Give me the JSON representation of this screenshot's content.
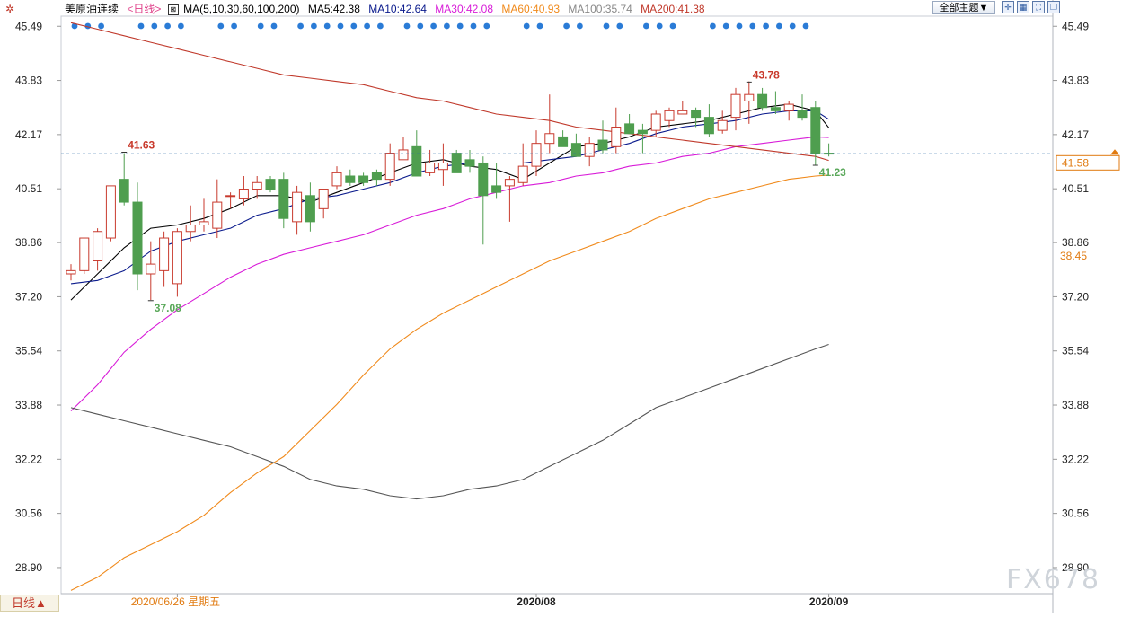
{
  "header": {
    "instrument": "美原油连续",
    "period": "<日线>",
    "ma_label": "MA(5,10,30,60,100,200)",
    "theme_button": "全部主题▼"
  },
  "period_button": "日线▲",
  "watermark": "FX678",
  "chart_data": {
    "type": "candlestick",
    "instrument": "美原油连续",
    "period": "日线",
    "ylim": [
      28.1,
      45.8
    ],
    "y_ticks": [
      "45.49",
      "43.83",
      "42.17",
      "40.51",
      "38.86",
      "37.20",
      "35.54",
      "33.88",
      "32.22",
      "30.56",
      "28.90"
    ],
    "x_labels": [
      {
        "label": "2020/06/26 星期五",
        "index": 8
      },
      {
        "label": "2020/08",
        "index": 35
      },
      {
        "label": "2020/09",
        "index": 57
      }
    ],
    "candles": [
      [
        37.9,
        38.2,
        37.7,
        38.0
      ],
      [
        38.0,
        39.0,
        37.9,
        39.0
      ],
      [
        38.3,
        39.3,
        38.0,
        39.2
      ],
      [
        39.0,
        40.6,
        38.9,
        40.6
      ],
      [
        40.8,
        41.6,
        40.0,
        40.1
      ],
      [
        40.1,
        40.7,
        37.4,
        37.9
      ],
      [
        37.9,
        38.9,
        37.1,
        38.2
      ],
      [
        38.0,
        39.2,
        37.5,
        39.0
      ],
      [
        37.6,
        39.3,
        37.2,
        39.2
      ],
      [
        39.2,
        40.0,
        38.9,
        39.4
      ],
      [
        39.4,
        40.2,
        39.2,
        39.5
      ],
      [
        39.3,
        40.8,
        39.0,
        40.1
      ],
      [
        40.3,
        40.4,
        39.9,
        40.3
      ],
      [
        40.2,
        40.9,
        40.0,
        40.5
      ],
      [
        40.5,
        40.9,
        40.2,
        40.7
      ],
      [
        40.8,
        40.9,
        40.4,
        40.5
      ],
      [
        40.8,
        41.0,
        39.3,
        39.6
      ],
      [
        39.5,
        40.6,
        39.1,
        40.4
      ],
      [
        40.3,
        40.7,
        39.2,
        39.5
      ],
      [
        39.9,
        40.5,
        39.6,
        40.5
      ],
      [
        40.6,
        41.2,
        40.5,
        41.0
      ],
      [
        40.9,
        41.1,
        40.6,
        40.7
      ],
      [
        40.9,
        41.0,
        40.6,
        40.7
      ],
      [
        41.0,
        41.1,
        40.6,
        40.8
      ],
      [
        40.8,
        41.9,
        40.6,
        41.6
      ],
      [
        41.4,
        42.1,
        41.4,
        41.7
      ],
      [
        41.8,
        42.3,
        40.9,
        40.9
      ],
      [
        41.0,
        41.7,
        40.9,
        41.3
      ],
      [
        41.1,
        41.9,
        40.6,
        41.3
      ],
      [
        41.6,
        41.7,
        41.0,
        41.0
      ],
      [
        41.4,
        41.7,
        41.0,
        41.2
      ],
      [
        41.3,
        41.5,
        38.8,
        40.3
      ],
      [
        40.6,
        41.3,
        40.2,
        40.4
      ],
      [
        40.6,
        40.9,
        39.5,
        40.8
      ],
      [
        40.7,
        41.9,
        40.6,
        41.2
      ],
      [
        41.2,
        42.3,
        40.9,
        41.9
      ],
      [
        41.9,
        43.4,
        41.6,
        42.2
      ],
      [
        42.1,
        42.3,
        41.8,
        41.8
      ],
      [
        41.9,
        42.2,
        41.5,
        41.5
      ],
      [
        41.5,
        42.1,
        41.2,
        41.9
      ],
      [
        42.0,
        42.6,
        41.6,
        41.7
      ],
      [
        41.8,
        43.0,
        41.6,
        42.4
      ],
      [
        42.5,
        42.8,
        42.2,
        42.2
      ],
      [
        42.3,
        42.5,
        41.6,
        42.2
      ],
      [
        42.3,
        42.9,
        42.1,
        42.8
      ],
      [
        42.6,
        43.0,
        42.4,
        42.9
      ],
      [
        42.8,
        43.2,
        42.8,
        42.9
      ],
      [
        42.9,
        43.0,
        42.4,
        42.7
      ],
      [
        42.7,
        43.1,
        42.1,
        42.2
      ],
      [
        42.3,
        42.9,
        42.2,
        42.6
      ],
      [
        42.7,
        43.6,
        42.3,
        43.4
      ],
      [
        43.2,
        43.8,
        42.5,
        43.4
      ],
      [
        43.4,
        43.6,
        42.9,
        43.0
      ],
      [
        43.0,
        43.5,
        42.8,
        42.9
      ],
      [
        42.9,
        43.2,
        42.6,
        43.1
      ],
      [
        42.9,
        43.4,
        42.6,
        42.7
      ],
      [
        43.0,
        43.2,
        41.23,
        41.6
      ],
      [
        41.6,
        41.9,
        41.5,
        41.58
      ]
    ],
    "candle_colors": {
      "up": "#c83a2e",
      "down": "#4f9e4f"
    },
    "high_annotations": [
      {
        "label": "41.63",
        "index": 4,
        "value": 41.63,
        "color": "#c8392b"
      },
      {
        "label": "43.78",
        "index": 51,
        "value": 43.78,
        "color": "#c8392b"
      }
    ],
    "low_annotations": [
      {
        "label": "37.08",
        "index": 6,
        "value": 37.08,
        "color": "#5aa85a"
      },
      {
        "label": "41.23",
        "index": 56,
        "value": 41.23,
        "color": "#5aa85a"
      }
    ],
    "ma_series": [
      {
        "name": "MA5",
        "value_label": "MA5:42.38",
        "latest": 42.38,
        "color": "#000000",
        "points": [
          [
            0,
            37.1
          ],
          [
            2,
            37.9
          ],
          [
            4,
            38.7
          ],
          [
            6,
            39.3
          ],
          [
            8,
            39.4
          ],
          [
            10,
            39.6
          ],
          [
            12,
            39.9
          ],
          [
            14,
            40.3
          ],
          [
            16,
            40.3
          ],
          [
            18,
            40.1
          ],
          [
            20,
            40.4
          ],
          [
            22,
            40.7
          ],
          [
            24,
            41.0
          ],
          [
            26,
            41.3
          ],
          [
            28,
            41.4
          ],
          [
            30,
            41.2
          ],
          [
            32,
            41.1
          ],
          [
            34,
            40.8
          ],
          [
            36,
            41.3
          ],
          [
            38,
            41.8
          ],
          [
            40,
            41.9
          ],
          [
            42,
            42.1
          ],
          [
            44,
            42.4
          ],
          [
            46,
            42.5
          ],
          [
            48,
            42.6
          ],
          [
            50,
            42.8
          ],
          [
            52,
            43.0
          ],
          [
            54,
            43.1
          ],
          [
            56,
            42.9
          ],
          [
            57,
            42.38
          ]
        ]
      },
      {
        "name": "MA10",
        "value_label": "MA10:42.64",
        "latest": 42.64,
        "color": "#0a1a8c",
        "points": [
          [
            0,
            37.6
          ],
          [
            2,
            37.7
          ],
          [
            4,
            38.0
          ],
          [
            6,
            38.6
          ],
          [
            8,
            38.9
          ],
          [
            10,
            39.1
          ],
          [
            12,
            39.3
          ],
          [
            14,
            39.7
          ],
          [
            16,
            39.9
          ],
          [
            18,
            40.2
          ],
          [
            20,
            40.3
          ],
          [
            22,
            40.5
          ],
          [
            24,
            40.7
          ],
          [
            26,
            41.0
          ],
          [
            28,
            41.2
          ],
          [
            30,
            41.3
          ],
          [
            32,
            41.3
          ],
          [
            34,
            41.3
          ],
          [
            36,
            41.4
          ],
          [
            38,
            41.5
          ],
          [
            40,
            41.7
          ],
          [
            42,
            41.9
          ],
          [
            44,
            42.2
          ],
          [
            46,
            42.4
          ],
          [
            48,
            42.5
          ],
          [
            50,
            42.6
          ],
          [
            52,
            42.8
          ],
          [
            54,
            42.9
          ],
          [
            56,
            42.9
          ],
          [
            57,
            42.64
          ]
        ]
      },
      {
        "name": "MA30",
        "value_label": "MA30:42.08",
        "latest": 42.08,
        "color": "#d81bd8",
        "points": [
          [
            0,
            33.7
          ],
          [
            2,
            34.5
          ],
          [
            4,
            35.5
          ],
          [
            6,
            36.2
          ],
          [
            8,
            36.8
          ],
          [
            10,
            37.3
          ],
          [
            12,
            37.8
          ],
          [
            14,
            38.2
          ],
          [
            16,
            38.5
          ],
          [
            18,
            38.7
          ],
          [
            20,
            38.9
          ],
          [
            22,
            39.1
          ],
          [
            24,
            39.4
          ],
          [
            26,
            39.7
          ],
          [
            28,
            39.9
          ],
          [
            30,
            40.2
          ],
          [
            32,
            40.4
          ],
          [
            34,
            40.6
          ],
          [
            36,
            40.7
          ],
          [
            38,
            40.9
          ],
          [
            40,
            41.0
          ],
          [
            42,
            41.2
          ],
          [
            44,
            41.3
          ],
          [
            46,
            41.5
          ],
          [
            48,
            41.6
          ],
          [
            50,
            41.8
          ],
          [
            52,
            41.9
          ],
          [
            54,
            42.0
          ],
          [
            56,
            42.1
          ],
          [
            57,
            42.08
          ]
        ]
      },
      {
        "name": "MA60",
        "value_label": "MA60:40.93",
        "latest": 40.93,
        "color": "#f08a1c",
        "points": [
          [
            0,
            28.2
          ],
          [
            2,
            28.6
          ],
          [
            4,
            29.2
          ],
          [
            6,
            29.6
          ],
          [
            8,
            30.0
          ],
          [
            10,
            30.5
          ],
          [
            12,
            31.2
          ],
          [
            14,
            31.8
          ],
          [
            16,
            32.3
          ],
          [
            18,
            33.1
          ],
          [
            20,
            33.9
          ],
          [
            22,
            34.8
          ],
          [
            24,
            35.6
          ],
          [
            26,
            36.2
          ],
          [
            28,
            36.7
          ],
          [
            30,
            37.1
          ],
          [
            32,
            37.5
          ],
          [
            34,
            37.9
          ],
          [
            36,
            38.3
          ],
          [
            38,
            38.6
          ],
          [
            40,
            38.9
          ],
          [
            42,
            39.2
          ],
          [
            44,
            39.6
          ],
          [
            46,
            39.9
          ],
          [
            48,
            40.2
          ],
          [
            50,
            40.4
          ],
          [
            52,
            40.6
          ],
          [
            54,
            40.8
          ],
          [
            56,
            40.9
          ],
          [
            57,
            40.93
          ]
        ]
      },
      {
        "name": "MA100",
        "value_label": "MA100:35.74",
        "latest": 35.74,
        "color": "#555555",
        "points": [
          [
            0,
            33.8
          ],
          [
            2,
            33.6
          ],
          [
            4,
            33.4
          ],
          [
            6,
            33.2
          ],
          [
            8,
            33.0
          ],
          [
            10,
            32.8
          ],
          [
            12,
            32.6
          ],
          [
            14,
            32.3
          ],
          [
            16,
            32.0
          ],
          [
            18,
            31.6
          ],
          [
            20,
            31.4
          ],
          [
            22,
            31.3
          ],
          [
            24,
            31.1
          ],
          [
            26,
            31.0
          ],
          [
            28,
            31.1
          ],
          [
            30,
            31.3
          ],
          [
            32,
            31.4
          ],
          [
            34,
            31.6
          ],
          [
            36,
            32.0
          ],
          [
            38,
            32.4
          ],
          [
            40,
            32.8
          ],
          [
            42,
            33.3
          ],
          [
            44,
            33.8
          ],
          [
            46,
            34.1
          ],
          [
            48,
            34.4
          ],
          [
            50,
            34.7
          ],
          [
            52,
            35.0
          ],
          [
            54,
            35.3
          ],
          [
            56,
            35.6
          ],
          [
            57,
            35.74
          ]
        ]
      },
      {
        "name": "MA200",
        "value_label": "MA200:41.38",
        "latest": 41.38,
        "color": "#c0392b",
        "points": [
          [
            0,
            45.6
          ],
          [
            2,
            45.4
          ],
          [
            4,
            45.2
          ],
          [
            6,
            45.0
          ],
          [
            8,
            44.8
          ],
          [
            10,
            44.6
          ],
          [
            12,
            44.4
          ],
          [
            14,
            44.2
          ],
          [
            16,
            44.0
          ],
          [
            18,
            43.9
          ],
          [
            20,
            43.8
          ],
          [
            22,
            43.7
          ],
          [
            24,
            43.5
          ],
          [
            26,
            43.3
          ],
          [
            28,
            43.2
          ],
          [
            30,
            43.0
          ],
          [
            32,
            42.8
          ],
          [
            34,
            42.7
          ],
          [
            36,
            42.6
          ],
          [
            38,
            42.4
          ],
          [
            40,
            42.3
          ],
          [
            42,
            42.2
          ],
          [
            44,
            42.1
          ],
          [
            46,
            42.0
          ],
          [
            48,
            41.9
          ],
          [
            50,
            41.8
          ],
          [
            52,
            41.7
          ],
          [
            54,
            41.6
          ],
          [
            56,
            41.5
          ],
          [
            57,
            41.38
          ]
        ]
      }
    ],
    "current_price": {
      "value": 41.58,
      "label": "41.58",
      "color": "#e07a10"
    },
    "ma60_tag": {
      "value": 38.45,
      "label": "38.45",
      "color": "#e07a10"
    },
    "event_dots": [
      0,
      1,
      2,
      5,
      6,
      7,
      8,
      11,
      12,
      14,
      15,
      17,
      18,
      19,
      20,
      21,
      22,
      23,
      25,
      26,
      27,
      28,
      29,
      30,
      31,
      34,
      35,
      37,
      38,
      40,
      41,
      43,
      44,
      45,
      48,
      49,
      50,
      51,
      52,
      53,
      54,
      55
    ],
    "event_dot_color": "#2a7bd6",
    "grid": false
  }
}
